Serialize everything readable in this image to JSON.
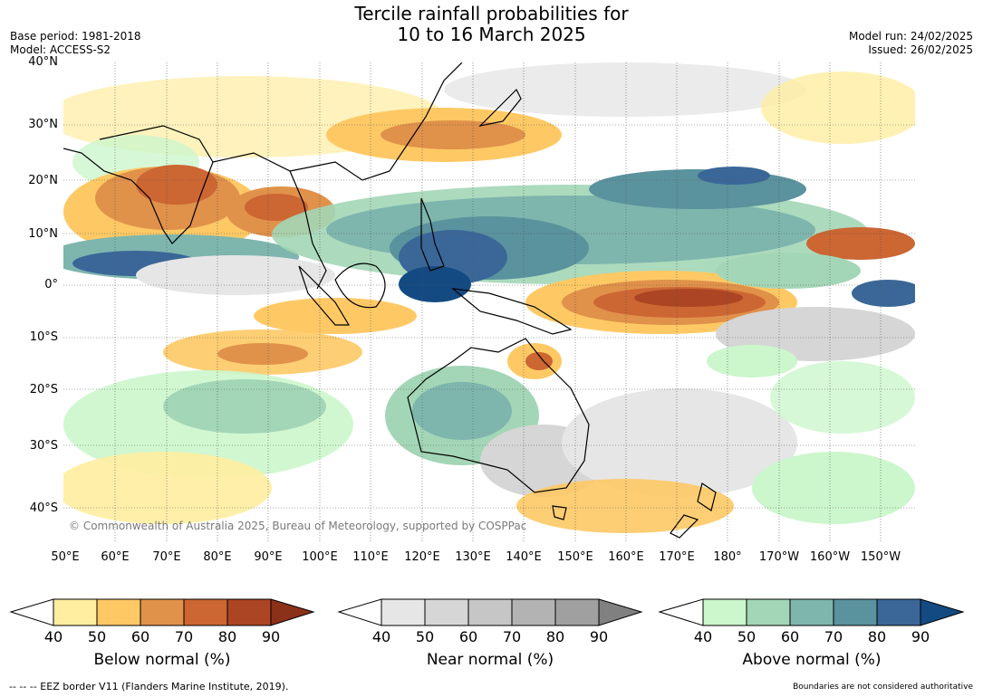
{
  "title": {
    "line1": "Tercile rainfall probabilities for",
    "line2": "10 to 16 March 2025"
  },
  "meta": {
    "base_period": "Base period: 1981-2018",
    "model": "Model: ACCESS-S2",
    "model_run": "Model run: 24/02/2025",
    "issued": "Issued: 26/02/2025"
  },
  "axes": {
    "lat_labels": [
      "40°N",
      "30°N",
      "20°N",
      "10°N",
      "0°",
      "10°S",
      "20°S",
      "30°S",
      "40°S"
    ],
    "lon_labels": [
      "50°E",
      "60°E",
      "70°E",
      "80°E",
      "90°E",
      "100°E",
      "110°E",
      "120°E",
      "130°E",
      "140°E",
      "150°E",
      "160°E",
      "170°E",
      "180°",
      "170°W",
      "160°W",
      "150°W"
    ]
  },
  "credit": "© Commonwealth of Australia 2025, Bureau of Meteorology, supported by COSPPac",
  "colorbars": [
    {
      "title": "Below normal (%)",
      "ticks": [
        "40",
        "50",
        "60",
        "70",
        "80",
        "90"
      ],
      "colors": [
        "#ffeda0",
        "#fec965",
        "#e0914a",
        "#cc6633",
        "#ac4523"
      ],
      "extend_color": "#8b3019"
    },
    {
      "title": "Near normal (%)",
      "ticks": [
        "40",
        "50",
        "60",
        "70",
        "80",
        "90"
      ],
      "colors": [
        "#e6e6e6",
        "#d6d6d6",
        "#c6c6c6",
        "#b3b3b3",
        "#a0a0a0"
      ],
      "extend_color": "#808080"
    },
    {
      "title": "Above normal (%)",
      "ticks": [
        "40",
        "50",
        "60",
        "70",
        "80",
        "90"
      ],
      "colors": [
        "#ccf6cc",
        "#a3d6b6",
        "#7eb6ae",
        "#5a929d",
        "#3a6798"
      ],
      "extend_color": "#134a82"
    }
  ],
  "footer": {
    "eez_note": "--  --  -- EEZ border V11 (Flanders Marine Institute, 2019).",
    "boundaries_note": "Boundaries are not considered authoritative"
  }
}
